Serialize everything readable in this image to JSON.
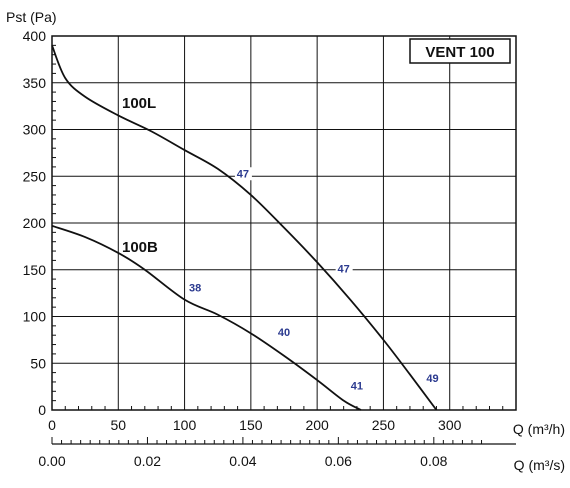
{
  "chart_data": {
    "type": "line",
    "badge": "VENT 100",
    "ylabel": "Pst (Pa)",
    "xlabel_top": "Q (m³/h)",
    "xlabel_bottom": "Q (m³/s)",
    "xlim": [
      0,
      350
    ],
    "ylim": [
      0,
      400
    ],
    "x_ticks": [
      "0",
      "50",
      "100",
      "150",
      "200",
      "250",
      "300"
    ],
    "x2_ticks": [
      "0.00",
      "0.02",
      "0.04",
      "0.06",
      "0.08"
    ],
    "y_ticks": [
      "0",
      "50",
      "100",
      "150",
      "200",
      "250",
      "300",
      "350",
      "400"
    ],
    "grid": true,
    "series": [
      {
        "name": "100L",
        "points": [
          [
            0,
            390
          ],
          [
            10,
            355
          ],
          [
            25,
            335
          ],
          [
            50,
            315
          ],
          [
            75,
            298
          ],
          [
            100,
            278
          ],
          [
            125,
            258
          ],
          [
            150,
            230
          ],
          [
            175,
            195
          ],
          [
            200,
            158
          ],
          [
            225,
            118
          ],
          [
            250,
            75
          ],
          [
            270,
            38
          ],
          [
            290,
            0
          ]
        ]
      },
      {
        "name": "100B",
        "points": [
          [
            0,
            197
          ],
          [
            25,
            185
          ],
          [
            50,
            168
          ],
          [
            70,
            150
          ],
          [
            100,
            118
          ],
          [
            125,
            102
          ],
          [
            150,
            82
          ],
          [
            175,
            58
          ],
          [
            200,
            32
          ],
          [
            220,
            10
          ],
          [
            233,
            0
          ]
        ]
      }
    ],
    "annotations": [
      {
        "text": "47",
        "x": 144,
        "y": 250
      },
      {
        "text": "47",
        "x": 220,
        "y": 148
      },
      {
        "text": "38",
        "x": 108,
        "y": 128
      },
      {
        "text": "40",
        "x": 175,
        "y": 80
      },
      {
        "text": "41",
        "x": 230,
        "y": 23
      },
      {
        "text": "49",
        "x": 287,
        "y": 31
      }
    ]
  }
}
